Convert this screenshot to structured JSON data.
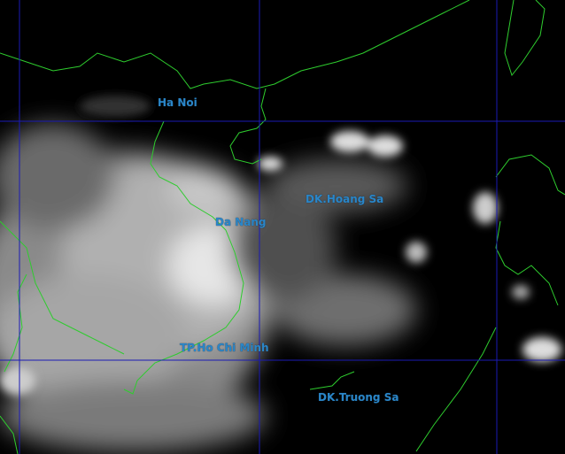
{
  "map": {
    "kind": "infrared satellite cloud image",
    "colors": {
      "background": "#000000",
      "grid": "#1a1ab4",
      "coastline": "#2ecc2e",
      "label": "#2a86c8",
      "cloud": "#e8e8e8"
    },
    "labels": {
      "hanoi": "Ha Noi",
      "danang": "Da Nang",
      "hoangsa": "DK.Hoang Sa",
      "hcm": "TP.Ho Chi Minh",
      "truongsa": "DK.Truong Sa"
    }
  }
}
